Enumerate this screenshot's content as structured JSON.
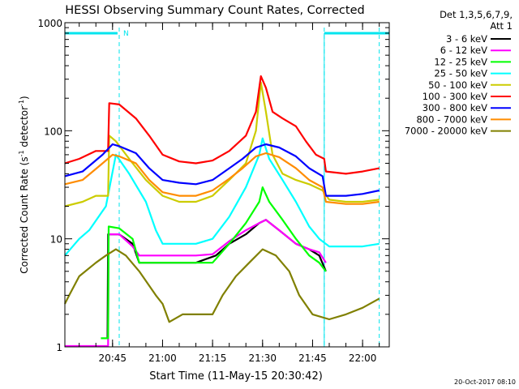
{
  "chart_data": {
    "type": "line",
    "title": "HESSI Observing Summary Count Rates, Corrected",
    "ylabel": "Corrected Count Rate (s^-1 detector^-1)",
    "ylabel_parts": {
      "main": "Corrected Count Rate (s",
      "sup1": "-1",
      "mid": " detector",
      "sup2": "-1",
      "end": ")"
    },
    "xlabel": "Start Time (11-May-15 20:30:42)",
    "date_stamp": "20-Oct-2017 08:10",
    "legend_header": [
      "Det 1,3,5,6,7,9,",
      "Att 1"
    ],
    "legend_placement": "top-right outside",
    "yscale": "log",
    "ylim": [
      1,
      1000
    ],
    "xlim": [
      "20:30:42",
      "22:08:00"
    ],
    "yticks": [
      {
        "value": 1,
        "label": "1"
      },
      {
        "value": 10,
        "label": "10"
      },
      {
        "value": 100,
        "label": "100"
      },
      {
        "value": 1000,
        "label": "1000"
      }
    ],
    "xticks": [
      {
        "value": "20:45",
        "label": "20:45"
      },
      {
        "value": "21:00",
        "label": "21:00"
      },
      {
        "value": "21:15",
        "label": "21:15"
      },
      {
        "value": "21:30",
        "label": "21:30"
      },
      {
        "value": "21:45",
        "label": "21:45"
      },
      {
        "value": "22:00",
        "label": "22:00"
      }
    ],
    "annotations": {
      "night_bars": [
        {
          "start": "20:30:42",
          "end": "20:46:30"
        },
        {
          "start": "21:48:30",
          "end": "22:08:00"
        }
      ],
      "markers": [
        {
          "time": "20:47:00",
          "label": "N"
        }
      ],
      "dashed_lines": [
        "20:47:00",
        "21:48:30",
        "22:05:00"
      ],
      "color": "#00e5ee"
    },
    "series": [
      {
        "name": "3 - 6 keV",
        "color": "#000000",
        "points": [
          [
            "20:43:30",
            1.2
          ],
          [
            "20:43:40",
            11
          ],
          [
            "20:47",
            11
          ],
          [
            "20:51",
            9
          ],
          [
            "20:53",
            6
          ],
          [
            "21:00",
            6
          ],
          [
            "21:10",
            6
          ],
          [
            "21:16",
            7
          ],
          [
            "21:20",
            9
          ],
          [
            "21:25",
            11
          ],
          [
            "21:29",
            14
          ],
          [
            "21:31",
            15
          ],
          [
            "21:35",
            12
          ],
          [
            "21:40",
            9
          ],
          [
            "21:44",
            8
          ],
          [
            "21:47",
            7
          ],
          [
            "21:49",
            5
          ]
        ]
      },
      {
        "name": "6 - 12 keV",
        "color": "#ff00ff",
        "points": [
          [
            "20:30:42",
            1
          ],
          [
            "20:43:40",
            1
          ],
          [
            "20:43:50",
            11
          ],
          [
            "20:47",
            11
          ],
          [
            "20:51",
            8.5
          ],
          [
            "20:53",
            7
          ],
          [
            "21:00",
            7
          ],
          [
            "21:10",
            7
          ],
          [
            "21:15",
            7.2
          ],
          [
            "21:20",
            9.5
          ],
          [
            "21:25",
            12
          ],
          [
            "21:29",
            14
          ],
          [
            "21:31",
            15
          ],
          [
            "21:35",
            12
          ],
          [
            "21:40",
            9
          ],
          [
            "21:44",
            8
          ],
          [
            "21:47",
            7.5
          ],
          [
            "21:49",
            6
          ]
        ]
      },
      {
        "name": "12 - 25 keV",
        "color": "#00ff00",
        "points": [
          [
            "20:41:30",
            1.2
          ],
          [
            "20:43:40",
            1.2
          ],
          [
            "20:43:50",
            13
          ],
          [
            "20:47",
            12.5
          ],
          [
            "20:51",
            10
          ],
          [
            "20:53",
            6
          ],
          [
            "21:00",
            6
          ],
          [
            "21:10",
            6
          ],
          [
            "21:15",
            6
          ],
          [
            "21:20",
            9
          ],
          [
            "21:25",
            14
          ],
          [
            "21:29",
            22
          ],
          [
            "21:30",
            30
          ],
          [
            "21:32",
            22
          ],
          [
            "21:36",
            15
          ],
          [
            "21:40",
            10
          ],
          [
            "21:44",
            7
          ],
          [
            "21:47",
            6
          ],
          [
            "21:49",
            5
          ]
        ]
      },
      {
        "name": "25 - 50 keV",
        "color": "#00ffff",
        "points": [
          [
            "20:30:42",
            7
          ],
          [
            "20:35",
            10
          ],
          [
            "20:38",
            12
          ],
          [
            "20:43",
            20
          ],
          [
            "20:46",
            60
          ],
          [
            "20:50",
            40
          ],
          [
            "20:55",
            22
          ],
          [
            "20:58",
            12
          ],
          [
            "21:00",
            9
          ],
          [
            "21:05",
            9
          ],
          [
            "21:10",
            9
          ],
          [
            "21:15",
            10
          ],
          [
            "21:20",
            16
          ],
          [
            "21:25",
            30
          ],
          [
            "21:29",
            60
          ],
          [
            "21:30",
            85
          ],
          [
            "21:32",
            55
          ],
          [
            "21:36",
            35
          ],
          [
            "21:40",
            22
          ],
          [
            "21:44",
            13
          ],
          [
            "21:47",
            10
          ],
          [
            "21:50",
            8.5
          ],
          [
            "21:55",
            8.5
          ],
          [
            "22:00",
            8.5
          ],
          [
            "22:05",
            9
          ]
        ]
      },
      {
        "name": "50 - 100 keV",
        "color": "#cccc00",
        "points": [
          [
            "20:30:42",
            20
          ],
          [
            "20:36",
            22
          ],
          [
            "20:40",
            25
          ],
          [
            "20:43:40",
            25
          ],
          [
            "20:44",
            90
          ],
          [
            "20:46",
            80
          ],
          [
            "20:50",
            55
          ],
          [
            "20:55",
            35
          ],
          [
            "21:00",
            25
          ],
          [
            "21:05",
            22
          ],
          [
            "21:10",
            22
          ],
          [
            "21:15",
            25
          ],
          [
            "21:20",
            35
          ],
          [
            "21:25",
            50
          ],
          [
            "21:28",
            100
          ],
          [
            "21:29:30",
            280
          ],
          [
            "21:31",
            150
          ],
          [
            "21:33",
            60
          ],
          [
            "21:36",
            40
          ],
          [
            "21:40",
            35
          ],
          [
            "21:44",
            32
          ],
          [
            "21:48",
            28
          ],
          [
            "21:50",
            23
          ],
          [
            "21:55",
            22
          ],
          [
            "22:00",
            22
          ],
          [
            "22:05",
            23
          ]
        ]
      },
      {
        "name": "100 - 300 keV",
        "color": "#ff0000",
        "points": [
          [
            "20:30:42",
            50
          ],
          [
            "20:35",
            55
          ],
          [
            "20:40",
            65
          ],
          [
            "20:43:40",
            65
          ],
          [
            "20:44",
            180
          ],
          [
            "20:47",
            175
          ],
          [
            "20:52",
            130
          ],
          [
            "20:56",
            90
          ],
          [
            "21:00",
            60
          ],
          [
            "21:05",
            52
          ],
          [
            "21:10",
            50
          ],
          [
            "21:15",
            53
          ],
          [
            "21:20",
            65
          ],
          [
            "21:25",
            90
          ],
          [
            "21:28",
            150
          ],
          [
            "21:29:30",
            320
          ],
          [
            "21:31",
            250
          ],
          [
            "21:33",
            150
          ],
          [
            "21:36",
            130
          ],
          [
            "21:40",
            110
          ],
          [
            "21:43",
            80
          ],
          [
            "21:46",
            60
          ],
          [
            "21:48:30",
            55
          ],
          [
            "21:49",
            42
          ],
          [
            "21:55",
            40
          ],
          [
            "22:00",
            42
          ],
          [
            "22:05",
            45
          ]
        ]
      },
      {
        "name": "300 - 800 keV",
        "color": "#0000ff",
        "points": [
          [
            "20:30:42",
            38
          ],
          [
            "20:36",
            42
          ],
          [
            "20:42",
            60
          ],
          [
            "20:45",
            75
          ],
          [
            "20:47",
            72
          ],
          [
            "20:52",
            62
          ],
          [
            "20:56",
            45
          ],
          [
            "21:00",
            35
          ],
          [
            "21:05",
            33
          ],
          [
            "21:10",
            32
          ],
          [
            "21:15",
            35
          ],
          [
            "21:20",
            45
          ],
          [
            "21:24",
            55
          ],
          [
            "21:28",
            70
          ],
          [
            "21:31",
            75
          ],
          [
            "21:35",
            70
          ],
          [
            "21:40",
            58
          ],
          [
            "21:44",
            45
          ],
          [
            "21:48",
            38
          ],
          [
            "21:49",
            25
          ],
          [
            "21:55",
            25
          ],
          [
            "22:00",
            26
          ],
          [
            "22:05",
            28
          ]
        ]
      },
      {
        "name": "800 - 7000 keV",
        "color": "#ff8c00",
        "points": [
          [
            "20:30:42",
            32
          ],
          [
            "20:36",
            35
          ],
          [
            "20:42",
            50
          ],
          [
            "20:45",
            60
          ],
          [
            "20:47",
            58
          ],
          [
            "20:52",
            50
          ],
          [
            "20:56",
            35
          ],
          [
            "21:00",
            27
          ],
          [
            "21:05",
            25
          ],
          [
            "21:10",
            25
          ],
          [
            "21:15",
            28
          ],
          [
            "21:20",
            36
          ],
          [
            "21:24",
            45
          ],
          [
            "21:28",
            58
          ],
          [
            "21:31",
            62
          ],
          [
            "21:35",
            57
          ],
          [
            "21:40",
            45
          ],
          [
            "21:44",
            35
          ],
          [
            "21:48",
            30
          ],
          [
            "21:49",
            22
          ],
          [
            "21:55",
            21
          ],
          [
            "22:00",
            21
          ],
          [
            "22:05",
            22
          ]
        ]
      },
      {
        "name": "7000 - 20000 keV",
        "color": "#808000",
        "points": [
          [
            "20:30:42",
            2.5
          ],
          [
            "20:32",
            3
          ],
          [
            "20:35",
            4.5
          ],
          [
            "20:40",
            6
          ],
          [
            "20:43",
            7
          ],
          [
            "20:46",
            8
          ],
          [
            "20:49",
            7
          ],
          [
            "20:53",
            5
          ],
          [
            "20:58",
            3
          ],
          [
            "21:00",
            2.5
          ],
          [
            "21:02",
            1.7
          ],
          [
            "21:06",
            2
          ],
          [
            "21:10",
            2
          ],
          [
            "21:15",
            2
          ],
          [
            "21:18",
            3
          ],
          [
            "21:22",
            4.5
          ],
          [
            "21:26",
            6
          ],
          [
            "21:30",
            8
          ],
          [
            "21:34",
            7
          ],
          [
            "21:38",
            5
          ],
          [
            "21:41",
            3
          ],
          [
            "21:45",
            2
          ],
          [
            "21:50",
            1.8
          ],
          [
            "21:55",
            2
          ],
          [
            "22:00",
            2.3
          ],
          [
            "22:05",
            2.8
          ]
        ]
      }
    ]
  }
}
